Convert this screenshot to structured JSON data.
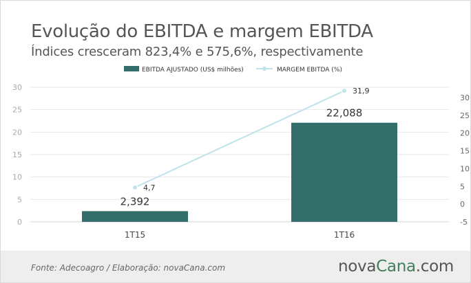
{
  "header": {
    "title": "Evolução do EBITDA e margem EBITDA",
    "subtitle": "Índices cresceram 823,4% e 575,6%, respectivamente"
  },
  "footer": {
    "source": "Fonte: Adecoagro / Elaboração: novaCana.com",
    "logo_part1": "nova",
    "logo_part2": "Cana",
    "logo_part3": ".com"
  },
  "colors": {
    "bar": "#336e6a",
    "line": "#bfe3ea",
    "grid": "#e6e6e6",
    "axis_text": "#aaaaaa",
    "logo_accent": "#3f7f5a"
  },
  "chart_data": {
    "type": "bar",
    "categories": [
      "1T15",
      "1T16"
    ],
    "series": [
      {
        "name": "EBITDA AJUSTADO (US$ milhões)",
        "type": "bar",
        "axis": "left",
        "values": [
          2.392,
          22.088
        ],
        "labels": [
          "2,392",
          "22,088"
        ]
      },
      {
        "name": "MARGEM EBITDA (%)",
        "type": "line",
        "axis": "right",
        "values": [
          4.7,
          31.9
        ],
        "labels": [
          "4,7",
          "31,9"
        ]
      }
    ],
    "y_left": {
      "min": 0,
      "max": 30,
      "ticks": [
        0,
        5,
        10,
        15,
        20,
        25,
        30
      ]
    },
    "y_right": {
      "min": -5,
      "max": 30,
      "ticks": [
        -5,
        0,
        5,
        10,
        15,
        20,
        25,
        30
      ]
    },
    "grid": true,
    "legend_position": "top"
  }
}
